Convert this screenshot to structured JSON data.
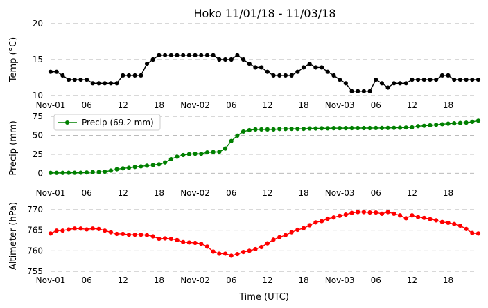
{
  "title": "Hoko 11/01/18 - 11/03/18",
  "xlabel": "Time (UTC)",
  "x_tick_labels": [
    "Nov-01",
    "06",
    "12",
    "18",
    "Nov-02",
    "06",
    "12",
    "18",
    "Nov-03",
    "06",
    "12",
    "18"
  ],
  "chart_data": [
    {
      "type": "line",
      "ylabel": "Temp ($^\\circ$C)",
      "ylabel_display": "Temp (°C)",
      "ylim": [
        10,
        20
      ],
      "yticks": [
        10,
        15,
        20
      ],
      "grid": true,
      "color": "#000000",
      "x_hours": [
        0,
        1,
        2,
        3,
        4,
        5,
        6,
        7,
        8,
        9,
        10,
        11,
        12,
        13,
        14,
        15,
        16,
        17,
        18,
        19,
        20,
        21,
        22,
        23,
        24,
        25,
        26,
        27,
        28,
        29,
        30,
        31,
        32,
        33,
        34,
        35,
        36,
        37,
        38,
        39,
        40,
        41,
        42,
        43,
        44,
        45,
        46,
        47,
        48,
        49,
        50,
        51,
        52,
        53,
        54,
        55,
        56,
        57,
        58,
        59,
        60,
        61,
        62,
        63,
        64,
        65,
        66,
        67,
        68,
        69,
        70,
        71
      ],
      "values": [
        13.3,
        13.3,
        12.8,
        12.2,
        12.2,
        12.2,
        12.2,
        11.7,
        11.7,
        11.7,
        11.7,
        11.7,
        12.8,
        12.8,
        12.8,
        12.8,
        14.4,
        15.0,
        15.6,
        15.6,
        15.6,
        15.6,
        15.6,
        15.6,
        15.6,
        15.6,
        15.6,
        15.6,
        15.0,
        15.0,
        15.0,
        15.6,
        15.0,
        14.4,
        13.9,
        13.9,
        13.3,
        12.8,
        12.8,
        12.8,
        12.8,
        13.3,
        13.9,
        14.4,
        13.9,
        13.9,
        13.3,
        12.8,
        12.2,
        11.7,
        10.6,
        10.6,
        10.6,
        10.6,
        12.2,
        11.7,
        11.1,
        11.7,
        11.7,
        11.7,
        12.2,
        12.2,
        12.2,
        12.2,
        12.2,
        12.8,
        12.8,
        12.2,
        12.2,
        12.2,
        12.2,
        12.2
      ]
    },
    {
      "type": "line",
      "ylabel": "Precip (mm)",
      "ylim": [
        -7,
        75
      ],
      "yticks": [
        0,
        25,
        50,
        75
      ],
      "grid": true,
      "color": "#008000",
      "legend": {
        "label": "Precip (69.2 mm)",
        "placement": "upper-left"
      },
      "x_hours": [
        0,
        1,
        2,
        3,
        4,
        5,
        6,
        7,
        8,
        9,
        10,
        11,
        12,
        13,
        14,
        15,
        16,
        17,
        18,
        19,
        20,
        21,
        22,
        23,
        24,
        25,
        26,
        27,
        28,
        29,
        30,
        31,
        32,
        33,
        34,
        35,
        36,
        37,
        38,
        39,
        40,
        41,
        42,
        43,
        44,
        45,
        46,
        47,
        48,
        49,
        50,
        51,
        52,
        53,
        54,
        55,
        56,
        57,
        58,
        59,
        60,
        61,
        62,
        63,
        64,
        65,
        66,
        67,
        68,
        69,
        70,
        71
      ],
      "values": [
        0.5,
        0.5,
        0.5,
        0.6,
        0.6,
        0.7,
        1.0,
        1.5,
        1.6,
        2.1,
        3.5,
        5.2,
        6.4,
        7.1,
        8.2,
        9.0,
        10.0,
        10.8,
        11.8,
        14.2,
        18.5,
        21.8,
        24.0,
        25.2,
        25.6,
        25.6,
        27.5,
        28.0,
        28.2,
        32.5,
        42.5,
        49.6,
        55.0,
        56.8,
        57.8,
        57.8,
        57.8,
        57.8,
        58.3,
        58.3,
        58.5,
        58.5,
        58.5,
        59.0,
        59.0,
        59.2,
        59.2,
        59.4,
        59.4,
        59.4,
        59.5,
        59.5,
        59.5,
        59.5,
        59.6,
        59.6,
        59.7,
        59.8,
        60.0,
        60.2,
        60.5,
        62.0,
        62.5,
        63.2,
        63.8,
        64.6,
        65.3,
        65.8,
        66.2,
        66.6,
        67.8,
        69.2
      ]
    },
    {
      "type": "line",
      "ylabel": "Altimeter (hPa)",
      "ylim": [
        755,
        771
      ],
      "yticks": [
        755,
        760,
        765,
        770
      ],
      "grid": true,
      "color": "#ff0000",
      "x_hours": [
        0,
        1,
        2,
        3,
        4,
        5,
        6,
        7,
        8,
        9,
        10,
        11,
        12,
        13,
        14,
        15,
        16,
        17,
        18,
        19,
        20,
        21,
        22,
        23,
        24,
        25,
        26,
        27,
        28,
        29,
        30,
        31,
        32,
        33,
        34,
        35,
        36,
        37,
        38,
        39,
        40,
        41,
        42,
        43,
        44,
        45,
        46,
        47,
        48,
        49,
        50,
        51,
        52,
        53,
        54,
        55,
        56,
        57,
        58,
        59,
        60,
        61,
        62,
        63,
        64,
        65,
        66,
        67,
        68,
        69,
        70,
        71
      ],
      "values": [
        764.2,
        764.9,
        764.9,
        765.2,
        765.4,
        765.4,
        765.2,
        765.4,
        765.3,
        764.9,
        764.5,
        764.1,
        764.1,
        763.9,
        763.9,
        763.9,
        763.8,
        763.5,
        762.9,
        763.0,
        762.9,
        762.6,
        762.1,
        762.0,
        761.9,
        761.7,
        761.0,
        759.8,
        759.3,
        759.3,
        758.8,
        759.2,
        759.7,
        760.0,
        760.4,
        760.9,
        761.8,
        762.7,
        763.3,
        763.8,
        764.5,
        765.1,
        765.5,
        766.2,
        766.9,
        767.2,
        767.8,
        768.1,
        768.5,
        768.8,
        769.2,
        769.4,
        769.4,
        769.3,
        769.3,
        769.0,
        769.4,
        769.0,
        768.6,
        767.9,
        768.6,
        768.2,
        768.0,
        767.7,
        767.4,
        767.0,
        766.8,
        766.5,
        766.1,
        765.3,
        764.3,
        764.2
      ]
    }
  ]
}
